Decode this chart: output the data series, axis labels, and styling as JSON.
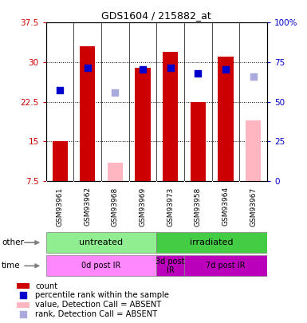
{
  "title": "GDS1604 / 215882_at",
  "samples": [
    "GSM93961",
    "GSM93962",
    "GSM93968",
    "GSM93969",
    "GSM93973",
    "GSM93958",
    "GSM93964",
    "GSM93967"
  ],
  "count_values": [
    15.0,
    33.0,
    null,
    29.0,
    32.0,
    22.5,
    31.0,
    null
  ],
  "count_absent_values": [
    null,
    null,
    11.0,
    null,
    null,
    null,
    null,
    19.0
  ],
  "rank_values": [
    57.5,
    71.5,
    null,
    70.5,
    71.5,
    68.0,
    70.5,
    null
  ],
  "rank_absent_values": [
    null,
    null,
    56.0,
    null,
    null,
    null,
    null,
    66.0
  ],
  "ylim_left": [
    7.5,
    37.5
  ],
  "ylim_right": [
    0,
    100
  ],
  "yticks_left": [
    7.5,
    15.0,
    22.5,
    30.0,
    37.5
  ],
  "yticks_right": [
    0,
    25,
    50,
    75,
    100
  ],
  "ytick_labels_left": [
    "7.5",
    "15",
    "22.5",
    "30",
    "37.5"
  ],
  "ytick_labels_right": [
    "0",
    "25",
    "50",
    "75",
    "100%"
  ],
  "groups_other": [
    {
      "label": "untreated",
      "start": 0,
      "end": 4,
      "color": "#90EE90"
    },
    {
      "label": "irradiated",
      "start": 4,
      "end": 8,
      "color": "#44CC44"
    }
  ],
  "groups_time": [
    {
      "label": "0d post IR",
      "start": 0,
      "end": 4,
      "color": "#FF88FF"
    },
    {
      "label": "3d post\nIR",
      "start": 4,
      "end": 5,
      "color": "#BB00BB"
    },
    {
      "label": "7d post IR",
      "start": 5,
      "end": 8,
      "color": "#BB00BB"
    }
  ],
  "bar_color": "#CC0000",
  "bar_absent_color": "#FFB6C1",
  "rank_color": "#0000CC",
  "rank_absent_color": "#AAAADD",
  "bar_width": 0.55,
  "rank_marker_size": 28,
  "grid_color": "#000000",
  "bg_color": "#FFFFFF",
  "plot_bg_color": "#FFFFFF",
  "left_tick_color": "#CC0000",
  "right_tick_color": "#0000CC"
}
